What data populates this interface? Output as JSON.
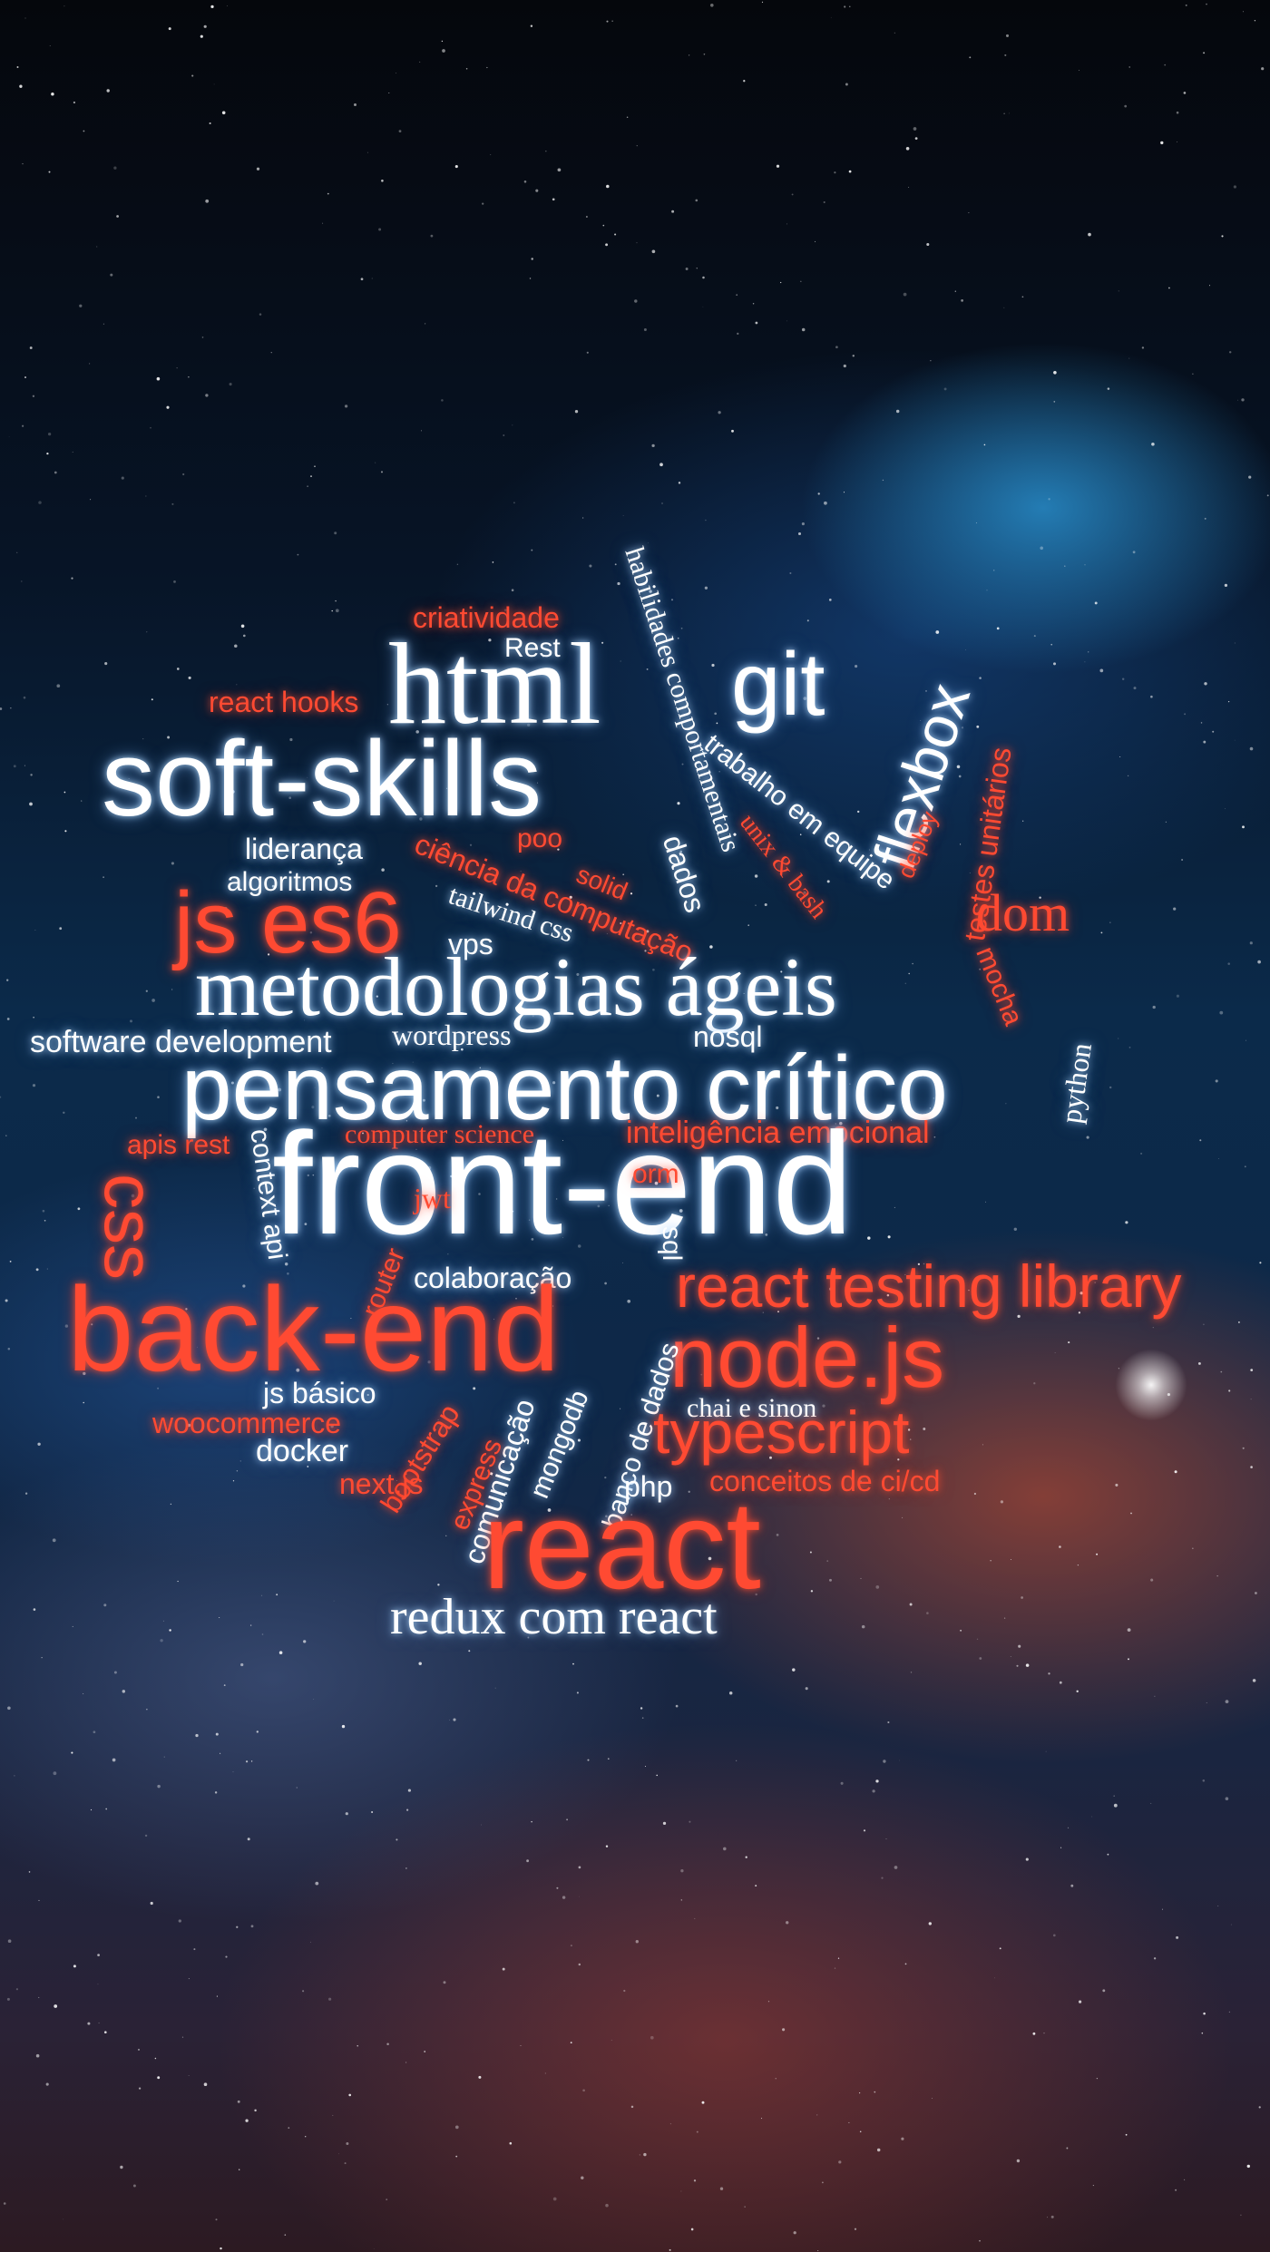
{
  "wordcloud": {
    "words": {
      "criatividade": "criatividade",
      "rest": "Rest",
      "html": "html",
      "habilidades": "habilidades comportamentais",
      "git": "git",
      "flexbox": "flexbox",
      "react_hooks": "react hooks",
      "trabalho": "trabalho em equipe",
      "soft_skills": "soft-skills",
      "testes": "testes unitários",
      "deploy": "deploy",
      "unix": "unix & bash",
      "lideranca": "liderança",
      "poo": "poo",
      "ciencia": "ciência da computação",
      "dados": "dados",
      "solid": "solid",
      "algoritmos": "algoritmos",
      "js_es6": "js es6",
      "tailwind": "tailwind css",
      "dom": "dom",
      "vps": "vps",
      "mocha": "mocha",
      "metodologias": "metodologias ágeis",
      "software_dev": "software development",
      "wordpress": "wordpress",
      "nosql": "nosql",
      "pensamento": "pensamento crítico",
      "apis_rest": "apis rest",
      "computer_science": "computer science",
      "inteligencia": "inteligência emocional",
      "context_api": "context api",
      "python": "python",
      "css": "css",
      "front_end": "front-end",
      "jwt": "jwt",
      "orm": "orm",
      "router": "router",
      "colaboracao": "colaboração",
      "sql": "sql",
      "react_testing": "react testing library",
      "back_end": "back-end",
      "node": "node.js",
      "js_basico": "js básico",
      "woocommerce": "woocommerce",
      "bootstrap": "bootstrap",
      "comunicacao": "comunicação",
      "mongodb": "mongodb",
      "banco": "banco de dados",
      "chai": "chai e sinon",
      "typescript": "typescript",
      "docker": "docker",
      "express": "express",
      "nextjs": "next.js",
      "php": "php",
      "cicd": "conceitos de ci/cd",
      "react": "react",
      "redux": "redux com react"
    }
  },
  "colors": {
    "white_word": "#ffffff",
    "red_word": "#ff4a32"
  }
}
